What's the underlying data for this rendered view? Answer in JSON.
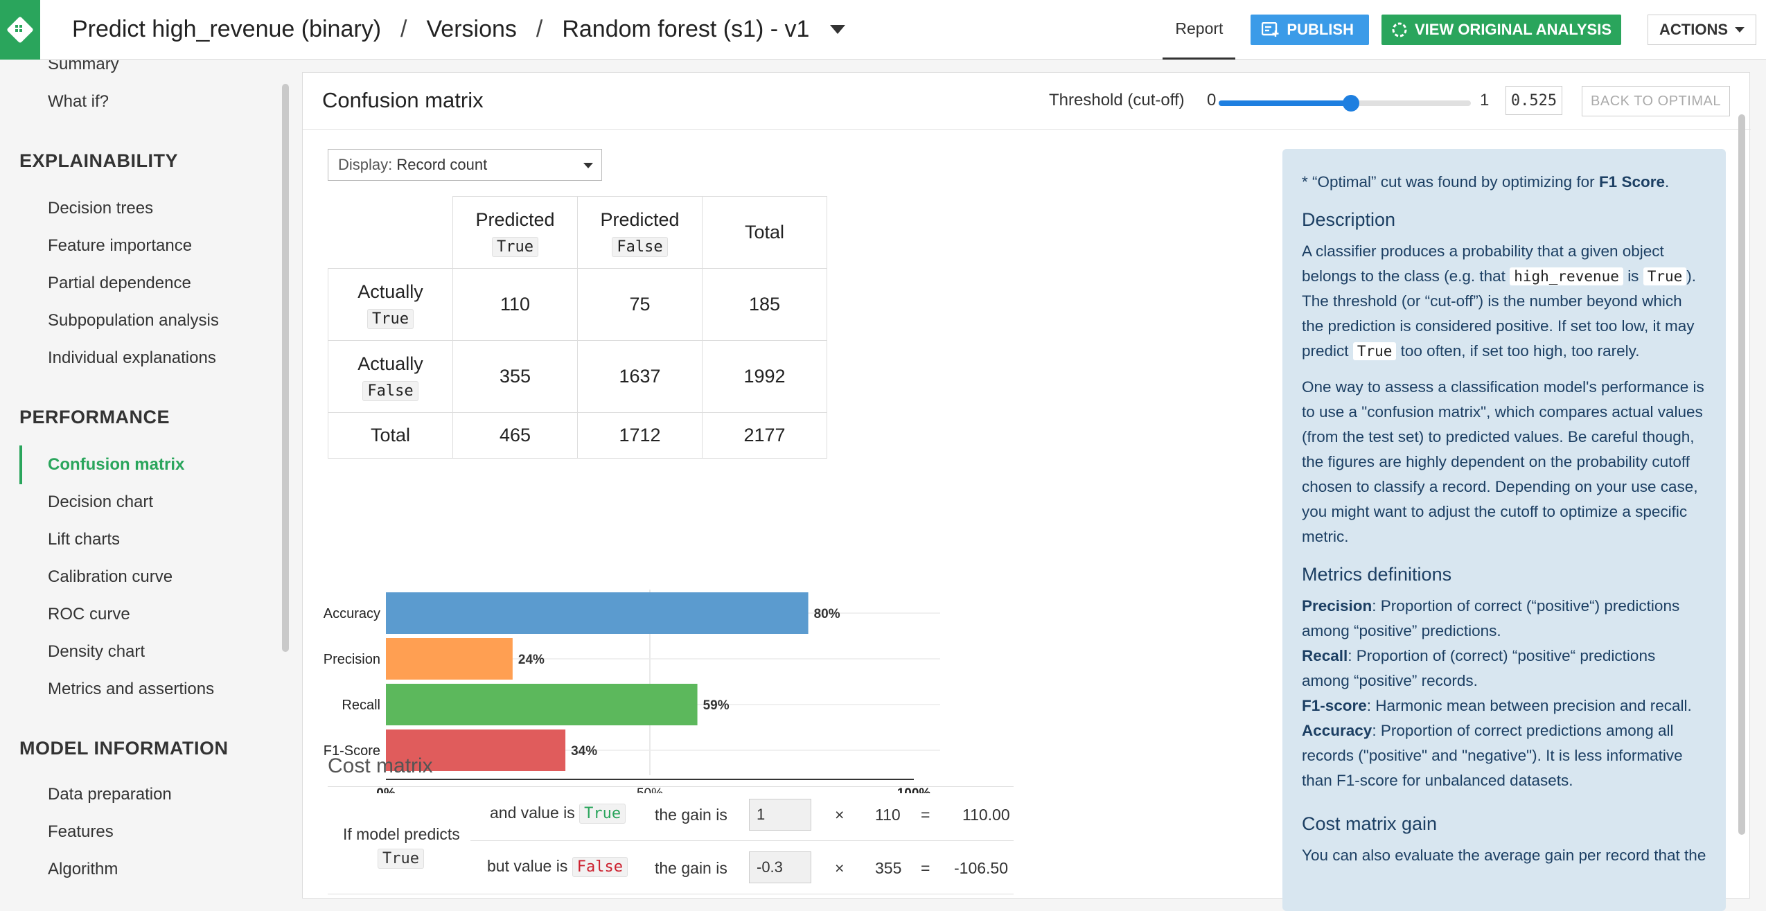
{
  "header": {
    "crumbs": [
      "Predict high_revenue (binary)",
      "Versions",
      "Random forest (s1) - v1"
    ],
    "separator": "/",
    "report_tab": "Report",
    "publish_label": "PUBLISH",
    "view_original_label": "VIEW ORIGINAL ANALYSIS",
    "actions_label": "ACTIONS"
  },
  "sidebar": {
    "top_items": [
      "Summary",
      "What if?"
    ],
    "sections": [
      {
        "title": "EXPLAINABILITY",
        "items": [
          "Decision trees",
          "Feature importance",
          "Partial dependence",
          "Subpopulation analysis",
          "Individual explanations"
        ]
      },
      {
        "title": "PERFORMANCE",
        "items": [
          "Confusion matrix",
          "Decision chart",
          "Lift charts",
          "Calibration curve",
          "ROC curve",
          "Density chart",
          "Metrics and assertions"
        ]
      },
      {
        "title": "MODEL INFORMATION",
        "items": [
          "Data preparation",
          "Features",
          "Algorithm"
        ]
      }
    ],
    "active_item": "Confusion matrix"
  },
  "panel": {
    "title": "Confusion matrix",
    "threshold_label": "Threshold (cut-off)",
    "threshold_min": "0",
    "threshold_max": "1",
    "threshold_value": "0.525",
    "threshold_fraction": 0.525,
    "back_to_optimal": "BACK TO OPTIMAL",
    "display_label": "Display:",
    "display_value": "Record count"
  },
  "matrix": {
    "predicted": "Predicted",
    "actually": "Actually",
    "true_code": "True",
    "false_code": "False",
    "total": "Total",
    "tp": "110",
    "fn": "75",
    "row_true_total": "185",
    "fp": "355",
    "tn": "1637",
    "row_false_total": "1992",
    "col_pred_true_total": "465",
    "col_pred_false_total": "1712",
    "grand_total": "2177"
  },
  "chart_data": {
    "type": "bar",
    "orientation": "horizontal",
    "categories": [
      "Accuracy",
      "Precision",
      "Recall",
      "F1-Score"
    ],
    "values": [
      80,
      24,
      59,
      34
    ],
    "value_labels": [
      "80%",
      "24%",
      "59%",
      "34%"
    ],
    "colors": [
      "#5b9bcf",
      "#ff9f52",
      "#5cb85c",
      "#e05c5c"
    ],
    "xlim": [
      0,
      100
    ],
    "xticks": [
      "0%",
      "50%",
      "100%"
    ]
  },
  "cost": {
    "title": "Cost matrix",
    "if_model_predicts": "If model predicts",
    "true_code": "True",
    "false_code": "False",
    "and_value_is": "and value is",
    "but_value_is": "but value is",
    "the_gain_is": "the gain is",
    "times": "×",
    "equals": "=",
    "row1": {
      "gain": "1",
      "count": "110",
      "result": "110.00"
    },
    "row2": {
      "gain": "-0.3",
      "count": "355",
      "result": "-106.50"
    }
  },
  "info": {
    "optimal_note_pre": "* “Optimal” cut was found by optimizing for",
    "optimal_metric": "F1 Score",
    "optimal_note_post": ".",
    "description_title": "Description",
    "desc1_a": "A classifier produces a probability that a given object belongs to the class (e.g. that",
    "desc1_code1": "high_revenue",
    "desc1_b": "is",
    "desc1_code2": "True",
    "desc1_c": "). The threshold (or “cut-off”) is the number beyond which the prediction is considered positive. If set too low, it may predict",
    "desc1_code3": "True",
    "desc1_d": "too often, if set too high, too rarely.",
    "desc2": "One way to assess a classification model's performance is to use a \"confusion matrix\", which compares actual values (from the test set) to predicted values. Be careful though, the figures are highly dependent on the probability cutoff chosen to classify a record. Depending on your use case, you might want to adjust the cutoff to optimize a specific metric.",
    "metrics_title": "Metrics definitions",
    "precision_term": "Precision",
    "precision_def": ": Proportion of correct (“positive“) predictions among “positive” predictions.",
    "recall_term": "Recall",
    "recall_def": ": Proportion of (correct) “positive“ predictions among “positive” records.",
    "f1_term": "F1-score",
    "f1_def": ": Harmonic mean between precision and recall.",
    "accuracy_term": "Accuracy",
    "accuracy_def": ": Proportion of correct predictions among all records (\"positive\" and \"negative\"). It is less informative than F1-score for unbalanced datasets.",
    "gain_title": "Cost matrix gain",
    "gain_text": "You can also evaluate the average gain per record that the"
  }
}
